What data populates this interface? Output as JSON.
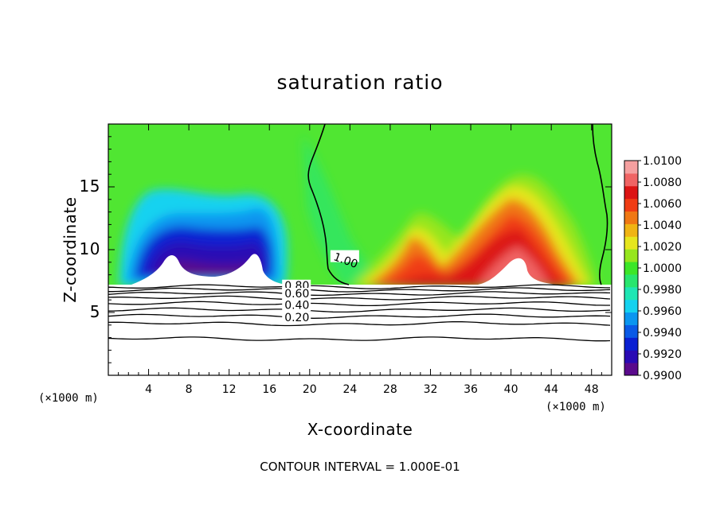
{
  "chart_data": {
    "type": "heatmap",
    "title": "saturation ratio",
    "xlabel": "X-coordinate",
    "ylabel": "Z-coordinate",
    "x_unit_left": "(×1000 m)",
    "x_unit_right": "(×1000 m)",
    "footer": "CONTOUR INTERVAL = 1.000E-01",
    "xlim": [
      0,
      50
    ],
    "ylim": [
      0,
      20
    ],
    "x_ticks": [
      4,
      8,
      12,
      16,
      20,
      24,
      28,
      32,
      36,
      40,
      44,
      48
    ],
    "y_ticks": [
      5,
      10,
      15
    ],
    "surface_height": 7.2,
    "colorbar": {
      "colors": [
        "#5a0a8c",
        "#2a0ab4",
        "#0a20d2",
        "#0a5ae6",
        "#0a96f0",
        "#14d2f0",
        "#1ee6b4",
        "#28e66e",
        "#3ce628",
        "#96e61e",
        "#e6e61e",
        "#f0b414",
        "#f07814",
        "#f03c14",
        "#dc1414",
        "#f06464",
        "#f5a0a0"
      ],
      "labels": [
        "1.0100",
        "1.0080",
        "1.0060",
        "1.0040",
        "1.0020",
        "1.0000",
        "0.9980",
        "0.9960",
        "0.9940",
        "0.9920",
        "0.9900"
      ],
      "min": 0.99,
      "max": 1.01
    },
    "contour_labels": [
      {
        "text": "1.00",
        "x": 22.3,
        "y": 9.2
      },
      {
        "text": "0.80",
        "x": 17.5,
        "y": 6.85
      },
      {
        "text": "0.60",
        "x": 17.5,
        "y": 6.2
      },
      {
        "text": "0.40",
        "x": 17.5,
        "y": 5.3
      },
      {
        "text": "0.20",
        "x": 17.5,
        "y": 4.3
      }
    ],
    "contour_levels_below": [
      {
        "level": 0.9,
        "z": 7.05
      },
      {
        "level": 0.8,
        "z": 6.8
      },
      {
        "level": 0.7,
        "z": 6.5
      },
      {
        "level": 0.6,
        "z": 6.15
      },
      {
        "level": 0.5,
        "z": 5.7
      },
      {
        "level": 0.4,
        "z": 5.2
      },
      {
        "level": 0.3,
        "z": 4.7
      },
      {
        "level": 0.2,
        "z": 4.1
      },
      {
        "level": 0.1,
        "z": 2.9
      }
    ]
  }
}
